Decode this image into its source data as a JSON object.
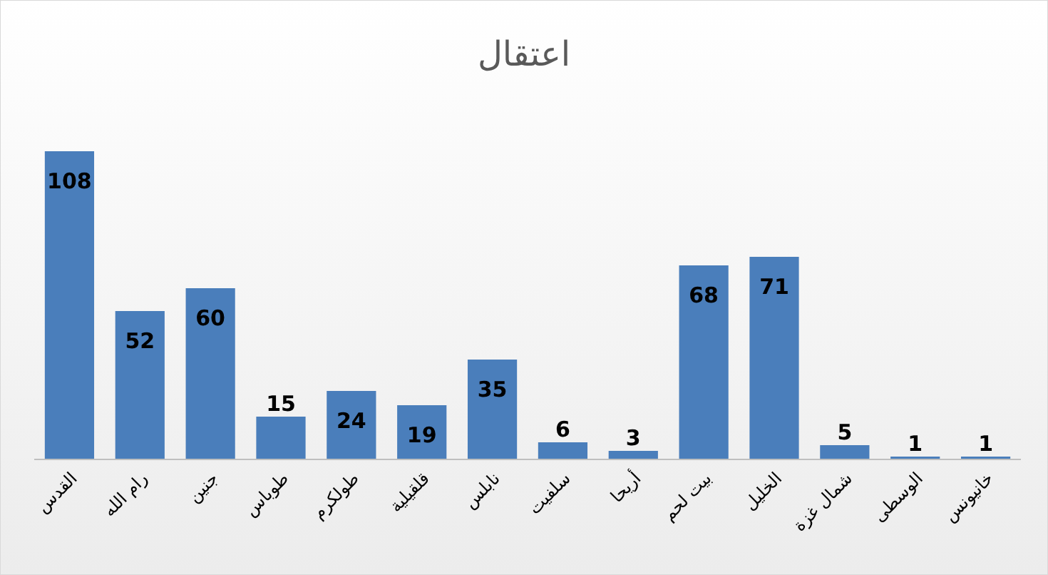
{
  "chart_data": {
    "type": "bar",
    "title": "اعتقال",
    "categories": [
      "القدس",
      "رام الله",
      "جنين",
      "طوباس",
      "طولكرم",
      "قلقيلية",
      "نابلس",
      "سلفيت",
      "أريحا",
      "بيت لحم",
      "الخليل",
      "شمال غزة",
      "الوسطى",
      "خانيونس"
    ],
    "values": [
      108,
      52,
      60,
      15,
      24,
      19,
      35,
      6,
      3,
      68,
      71,
      5,
      1,
      1
    ],
    "color": "#4a7ebb",
    "data_labels": true
  }
}
